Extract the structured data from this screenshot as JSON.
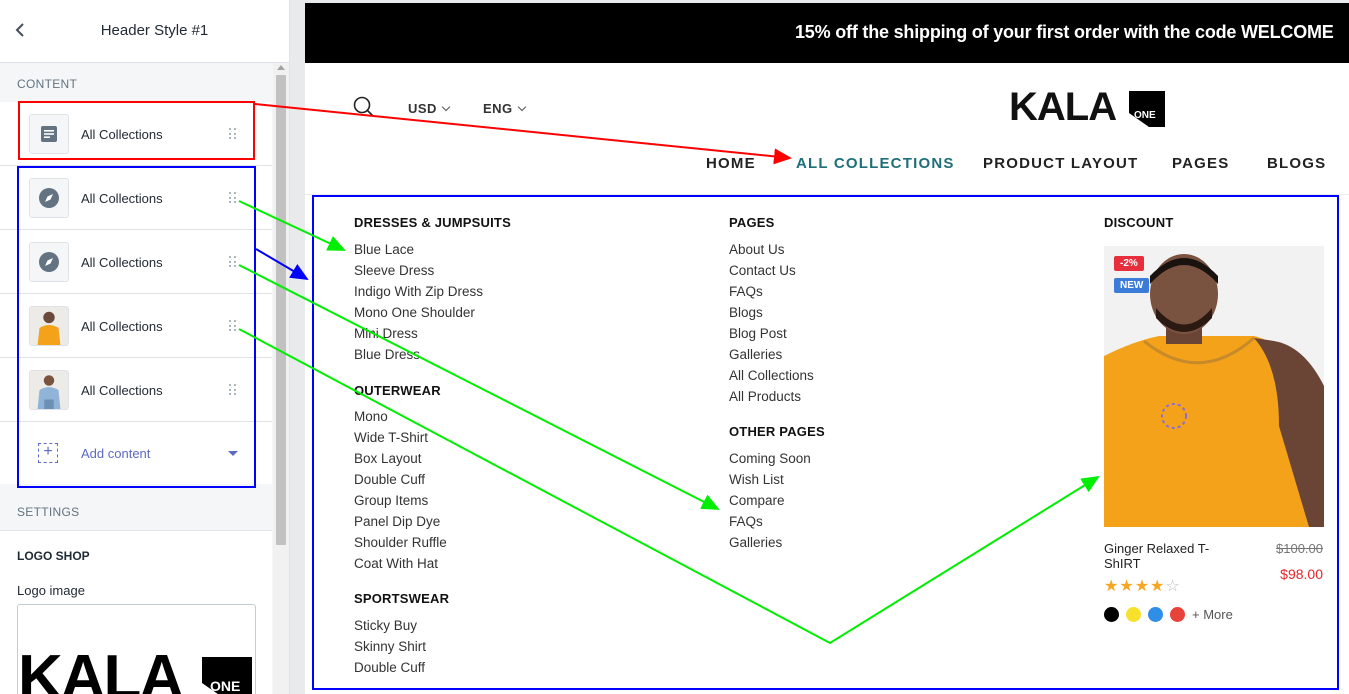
{
  "sidebar": {
    "title": "Header Style #1",
    "content_label": "CONTENT",
    "settings_label": "SETTINGS",
    "items": [
      {
        "label": "All Collections",
        "icon": "text-block-icon"
      },
      {
        "label": "All Collections",
        "icon": "compass-icon"
      },
      {
        "label": "All Collections",
        "icon": "compass-icon"
      },
      {
        "label": "All Collections",
        "icon": "product-thumbnail"
      },
      {
        "label": "All Collections",
        "icon": "product-thumbnail"
      }
    ],
    "add_content": "Add content",
    "logo_shop": "LOGO SHOP",
    "logo_image": "Logo image",
    "logo_preview_text": "KALA"
  },
  "promo": {
    "text": "15% off the shipping of your first order with the code WELCOME"
  },
  "header": {
    "currency": "USD",
    "language": "ENG",
    "logo_text": "KALA",
    "logo_badge": "ONE",
    "nav": [
      "HOME",
      "ALL COLLECTIONS",
      "PRODUCT LAYOUT",
      "PAGES",
      "BLOGS"
    ]
  },
  "menu": {
    "col1": {
      "groups": [
        {
          "title": "DRESSES & JUMPSUITS",
          "links": [
            "Blue Lace",
            "Sleeve Dress",
            "Indigo With Zip Dress",
            "Mono One Shoulder",
            "Mini Dress",
            "Blue Dress"
          ]
        },
        {
          "title": "OUTERWEAR",
          "links": [
            "Mono",
            "Wide T-Shirt",
            "Box Layout",
            "Double Cuff",
            "Group Items",
            "Panel Dip Dye",
            "Shoulder Ruffle",
            "Coat With Hat"
          ]
        },
        {
          "title": "SPORTSWEAR",
          "links": [
            "Sticky Buy",
            "Skinny Shirt",
            "Double Cuff"
          ]
        }
      ]
    },
    "col2": {
      "groups": [
        {
          "title": "PAGES",
          "links": [
            "About Us",
            "Contact Us",
            "FAQs",
            "Blogs",
            "Blog Post",
            "Galleries",
            "All Collections",
            "All Products"
          ]
        },
        {
          "title": "OTHER PAGES",
          "links": [
            "Coming Soon",
            "Wish List",
            "Compare",
            "FAQs",
            "Galleries"
          ]
        }
      ]
    },
    "discount": {
      "title": "DISCOUNT",
      "badge_sale": "-2%",
      "badge_new": "NEW",
      "product_name": "Ginger Relaxed T-ShIRT",
      "old_price": "$100.00",
      "new_price": "$98.00",
      "rating": 4,
      "rating_max": 5,
      "swatches": [
        "#000000",
        "#f8e12d",
        "#2f8ee5",
        "#e8433a"
      ],
      "more": "+ More"
    }
  },
  "colors": {
    "annotation_red": "#ff0000",
    "annotation_blue": "#0000ff",
    "annotation_green": "#00ff00",
    "nav_active": "#1e6f78"
  }
}
